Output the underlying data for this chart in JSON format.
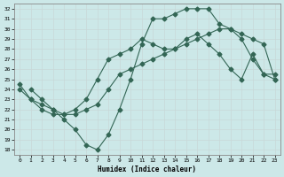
{
  "xlabel": "Humidex (Indice chaleur)",
  "xlim": [
    -0.5,
    23.5
  ],
  "ylim": [
    17.5,
    32.5
  ],
  "yticks": [
    18,
    19,
    20,
    21,
    22,
    23,
    24,
    25,
    26,
    27,
    28,
    29,
    30,
    31,
    32
  ],
  "xticks": [
    0,
    1,
    2,
    3,
    4,
    5,
    6,
    7,
    8,
    9,
    10,
    11,
    12,
    13,
    14,
    15,
    16,
    17,
    18,
    19,
    20,
    21,
    22,
    23
  ],
  "bg_color": "#cce8e8",
  "line_color": "#336655",
  "grid_color": "#aacccc",
  "line1_x": [
    1,
    2,
    3,
    4,
    5,
    6,
    7,
    8,
    9,
    10,
    11,
    12,
    13,
    14,
    15,
    16,
    17,
    18,
    19,
    20,
    21,
    22,
    23
  ],
  "line1_y": [
    24.0,
    23.0,
    22.0,
    21.0,
    20.0,
    18.5,
    18.0,
    19.5,
    22.0,
    25.0,
    28.5,
    31.0,
    31.0,
    31.5,
    32.0,
    32.0,
    32.0,
    30.5,
    30.0,
    29.0,
    27.0,
    25.5,
    25.5
  ],
  "line2_x": [
    0,
    1,
    2,
    3,
    4,
    5,
    6,
    7,
    8,
    9,
    10,
    11,
    12,
    13,
    14,
    15,
    16,
    17,
    18,
    19,
    20,
    21,
    22,
    23
  ],
  "line2_y": [
    24.0,
    23.0,
    22.5,
    22.0,
    21.5,
    21.5,
    22.0,
    22.5,
    24.0,
    25.5,
    26.0,
    26.5,
    27.0,
    27.5,
    28.0,
    28.5,
    29.0,
    29.5,
    30.0,
    30.0,
    29.5,
    29.0,
    28.5,
    25.0
  ],
  "line3_x": [
    0,
    1,
    2,
    3,
    4,
    5,
    6,
    7,
    8,
    9,
    10,
    11,
    12,
    13,
    14,
    15,
    16,
    17,
    18,
    19,
    20,
    21,
    22,
    23
  ],
  "line3_y": [
    24.5,
    23.0,
    22.0,
    21.5,
    21.5,
    22.0,
    23.0,
    25.0,
    27.0,
    27.5,
    28.0,
    29.0,
    28.5,
    28.0,
    28.0,
    29.0,
    29.5,
    28.5,
    27.5,
    26.0,
    25.0,
    27.5,
    25.5,
    25.0
  ],
  "markersize": 2.5
}
